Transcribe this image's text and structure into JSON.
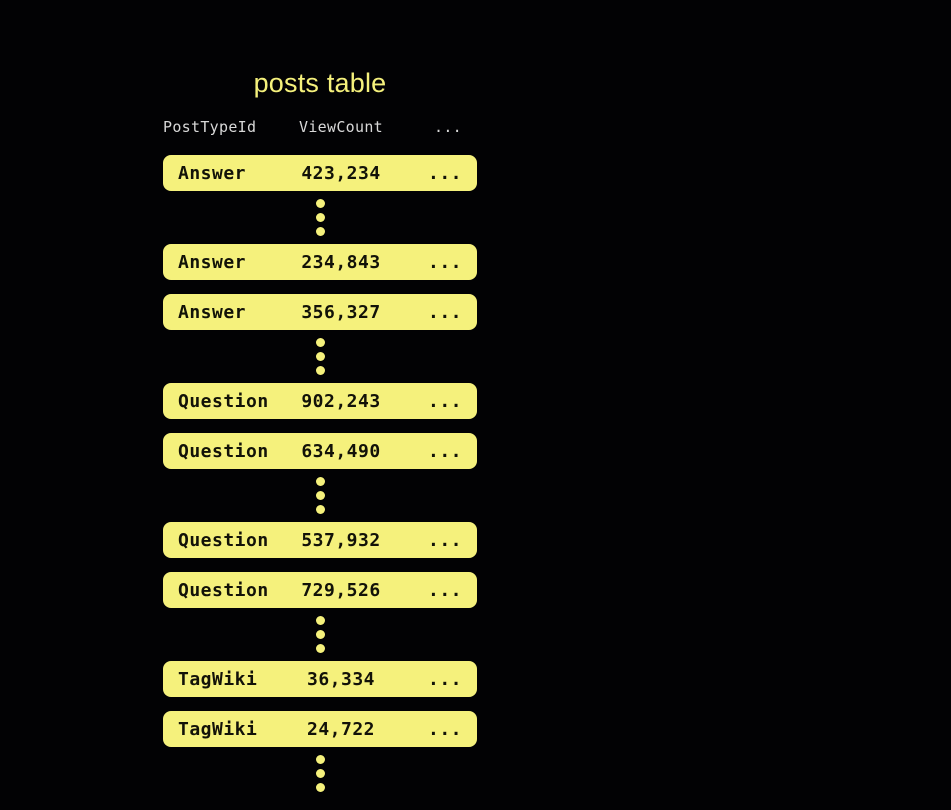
{
  "title": "posts table",
  "colors": {
    "bg": "#020204",
    "accent": "#f5f17c",
    "header-text": "#d8d8d8",
    "row-text": "#121208"
  },
  "table": {
    "headers": [
      "PostTypeId",
      "ViewCount",
      "..."
    ],
    "rows": [
      {
        "type": "Answer",
        "views": "423,234",
        "more": "..."
      },
      {
        "type": "Answer",
        "views": "234,843",
        "more": "..."
      },
      {
        "type": "Answer",
        "views": "356,327",
        "more": "..."
      },
      {
        "type": "Question",
        "views": "902,243",
        "more": "..."
      },
      {
        "type": "Question",
        "views": "634,490",
        "more": "..."
      },
      {
        "type": "Question",
        "views": "537,932",
        "more": "..."
      },
      {
        "type": "Question",
        "views": "729,526",
        "more": "..."
      },
      {
        "type": "TagWiki",
        "views": "36,334",
        "more": "..."
      },
      {
        "type": "TagWiki",
        "views": "24,722",
        "more": "..."
      }
    ]
  }
}
